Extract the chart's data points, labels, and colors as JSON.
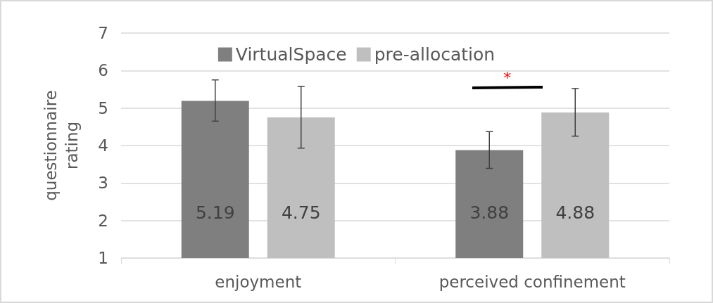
{
  "chart_data": {
    "type": "bar",
    "ylabel": "questionnaire\nrating",
    "categories": [
      "enjoyment",
      "perceived confinement"
    ],
    "series": [
      {
        "name": "VirtualSpace",
        "color": "#7f7f7f",
        "values": [
          5.19,
          3.88
        ],
        "errors": [
          [
            4.65,
            5.75
          ],
          [
            3.39,
            4.37
          ]
        ]
      },
      {
        "name": "pre-allocation",
        "color": "#bfbfbf",
        "values": [
          4.75,
          4.88
        ],
        "errors": [
          [
            3.93,
            5.58
          ],
          [
            4.25,
            5.52
          ]
        ]
      }
    ],
    "ylim": [
      1,
      7
    ],
    "yticks": [
      1,
      2,
      3,
      4,
      5,
      6,
      7
    ],
    "grid": "y",
    "legend": "top",
    "data_labels": true,
    "annotations": [
      "*"
    ]
  }
}
